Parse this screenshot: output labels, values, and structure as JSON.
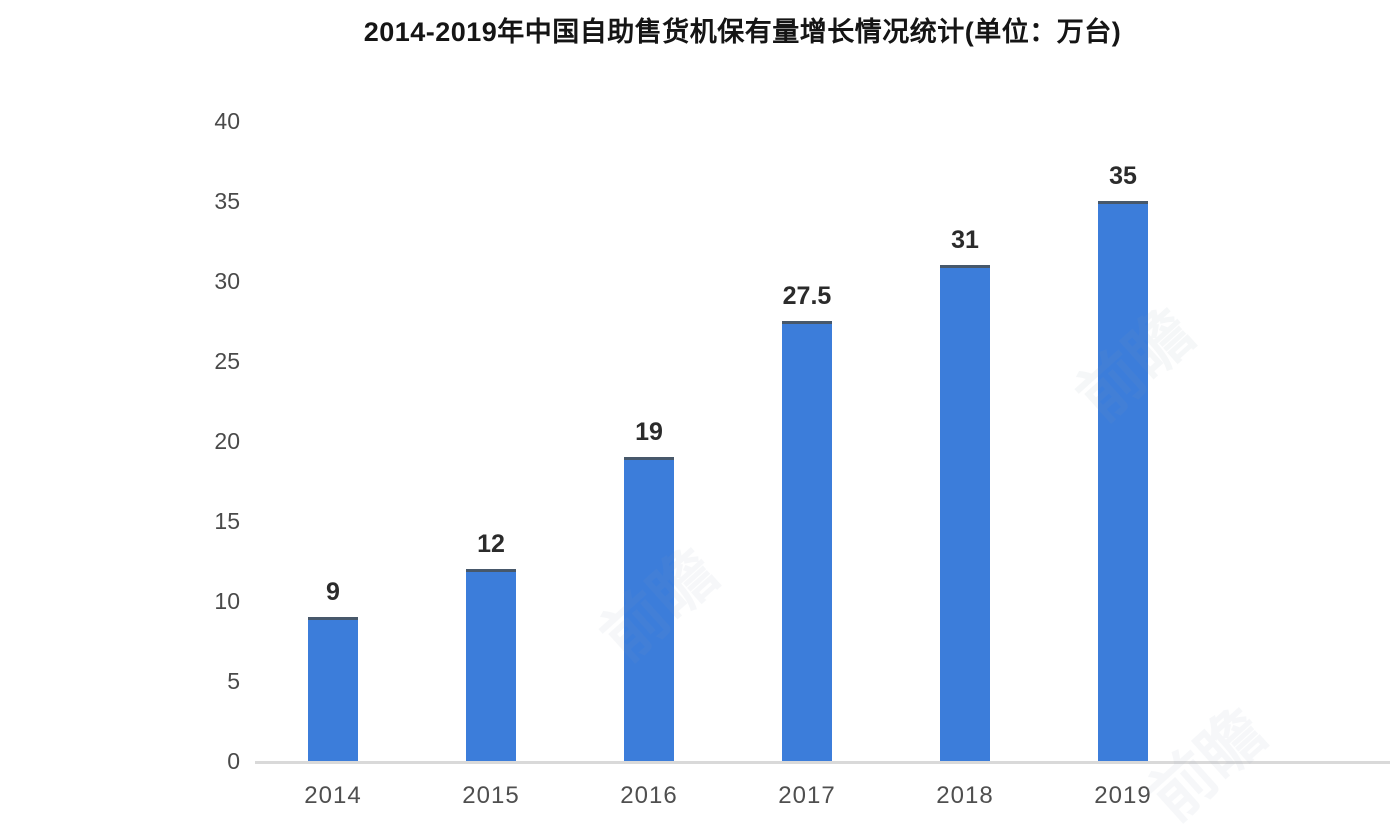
{
  "title": "2014-2019年中国自助售货机保有量增长情况统计(单位：万台)",
  "chart_data": {
    "type": "bar",
    "title": "2014-2019年中国自助售货机保有量增长情况统计(单位：万台)",
    "categories": [
      "2014",
      "2015",
      "2016",
      "2017",
      "2018",
      "2019"
    ],
    "values": [
      9,
      12,
      19,
      27.5,
      31,
      35
    ],
    "value_labels": [
      "9",
      "12",
      "19",
      "27.5",
      "31",
      "35"
    ],
    "xlabel": "",
    "ylabel": "",
    "ylim": [
      0,
      40
    ],
    "yticks": [
      0,
      5,
      10,
      15,
      20,
      25,
      30,
      35,
      40
    ],
    "grid": false,
    "legend": null,
    "colors": {
      "bar": "#3c7dda",
      "bar_top_edge": "#47586b",
      "axis_line": "#d9d9d9",
      "tick_label": "#4a4a4a",
      "value_label": "#2b2b2b",
      "title": "#151515"
    }
  },
  "watermark": {
    "text": "前瞻",
    "color": "#8fa0b4"
  }
}
